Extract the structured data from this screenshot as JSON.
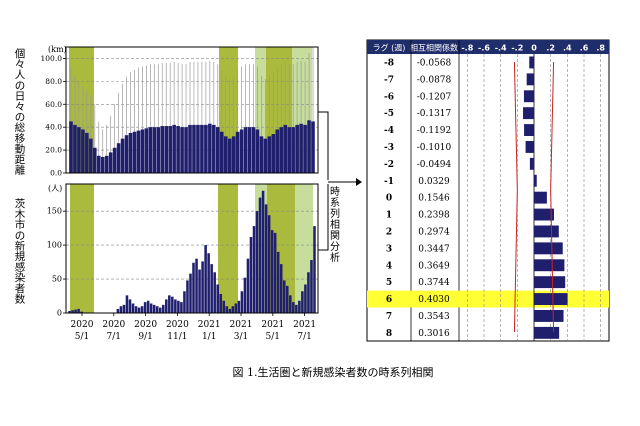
{
  "caption": "図 1.生活圏と新規感染者数の時系列相関",
  "link_label": "時系列相関分析",
  "colors": {
    "navy": "#1f1f6e",
    "olive": "#a9ba3c",
    "light_green": "#c6dd9c",
    "grey": "#9a9a9a",
    "highlight": "#ffff33",
    "header": "#1f2d6b",
    "red": "#cc2222"
  },
  "chart_data": [
    {
      "type": "bar",
      "ylabel": "個々人の日々の総移動距離",
      "unit": "(km)",
      "ylim": [
        0,
        110
      ],
      "yticks": [
        "0.0",
        "20.0",
        "40.0",
        "60.0",
        "80.0",
        "100.0"
      ],
      "ytick_values": [
        0,
        20,
        40,
        60,
        80,
        100
      ],
      "series": [
        {
          "values": [
            45,
            42,
            40,
            38,
            35,
            30,
            22,
            15,
            14,
            15,
            18,
            22,
            26,
            30,
            33,
            35,
            36,
            37,
            38,
            39,
            40,
            40,
            40,
            41,
            41,
            41,
            42,
            41,
            40,
            40,
            42,
            42,
            42,
            42,
            42,
            43,
            42,
            40,
            36,
            32,
            30,
            32,
            36,
            38,
            40,
            40,
            40,
            38,
            32,
            30,
            32,
            34,
            38,
            40,
            42,
            40,
            40,
            42,
            43,
            42,
            46,
            45
          ]
        },
        {
          "values": [
            92,
            85,
            80,
            76,
            72,
            68,
            60,
            45,
            38,
            42,
            50,
            60,
            70,
            78,
            84,
            88,
            90,
            92,
            93,
            94,
            95,
            95,
            95,
            96,
            96,
            96,
            97,
            96,
            95,
            95,
            97,
            97,
            97,
            97,
            97,
            98,
            97,
            95,
            90,
            85,
            82,
            85,
            90,
            93,
            95,
            95,
            95,
            93,
            85,
            82,
            85,
            88,
            92,
            95,
            97,
            95,
            95,
            97,
            98,
            97,
            105,
            110
          ]
        }
      ]
    },
    {
      "type": "bar",
      "ylabel": "茨木市の新規感染者数",
      "unit": "(人)",
      "ylim": [
        0,
        190
      ],
      "yticks": [
        "0",
        "50",
        "100",
        "150"
      ],
      "ytick_values": [
        0,
        50,
        100,
        150
      ],
      "values": [
        3,
        4,
        5,
        6,
        2,
        0,
        0,
        0,
        0,
        0,
        0,
        0,
        0,
        0,
        0,
        0,
        6,
        10,
        12,
        26,
        20,
        14,
        10,
        8,
        10,
        16,
        18,
        14,
        12,
        10,
        8,
        12,
        20,
        26,
        24,
        20,
        18,
        16,
        32,
        48,
        58,
        74,
        80,
        64,
        76,
        100,
        88,
        72,
        60,
        42,
        28,
        18,
        10,
        6,
        10,
        14,
        18,
        32,
        52,
        80,
        112,
        128,
        150,
        170,
        180,
        160,
        144,
        122,
        118,
        90,
        72,
        48,
        40,
        26,
        16,
        12,
        18,
        32,
        42,
        60,
        78,
        128
      ],
      "xticks": [
        {
          "year": "2020",
          "month": "5/1"
        },
        {
          "year": "2020",
          "month": "7/1"
        },
        {
          "year": "2020",
          "month": "9/1"
        },
        {
          "year": "2020",
          "month": "11/1"
        },
        {
          "year": "2021",
          "month": "1/1"
        },
        {
          "year": "2021",
          "month": "3/1"
        },
        {
          "year": "2021",
          "month": "5/1"
        },
        {
          "year": "2021",
          "month": "7/1"
        }
      ]
    },
    {
      "type": "bar",
      "orientation": "horizontal",
      "col_headers": [
        "ラグ (週)",
        "相互相関係数"
      ],
      "xtick_labels": [
        "-.8",
        "-.6",
        "-.4",
        "-.2",
        "0",
        ".2",
        ".4",
        ".6",
        ".8"
      ],
      "xtick_values": [
        -0.8,
        -0.6,
        -0.4,
        -0.2,
        0,
        0.2,
        0.4,
        0.6,
        0.8
      ],
      "xlim": [
        -0.9,
        0.9
      ],
      "highlight_lag": "6",
      "rows": [
        {
          "lag": "-8",
          "coef": "-0.0568",
          "value": -0.0568
        },
        {
          "lag": "-7",
          "coef": "-0.0878",
          "value": -0.0878
        },
        {
          "lag": "-6",
          "coef": "-0.1207",
          "value": -0.1207
        },
        {
          "lag": "-5",
          "coef": "-0.1317",
          "value": -0.1317
        },
        {
          "lag": "-4",
          "coef": "-0.1192",
          "value": -0.1192
        },
        {
          "lag": "-3",
          "coef": "-0.1010",
          "value": -0.101
        },
        {
          "lag": "-2",
          "coef": "-0.0494",
          "value": -0.0494
        },
        {
          "lag": "-1",
          "coef": "0.0329",
          "value": 0.0329
        },
        {
          "lag": "0",
          "coef": "0.1546",
          "value": 0.1546
        },
        {
          "lag": "1",
          "coef": "0.2398",
          "value": 0.2398
        },
        {
          "lag": "2",
          "coef": "0.2974",
          "value": 0.2974
        },
        {
          "lag": "3",
          "coef": "0.3447",
          "value": 0.3447
        },
        {
          "lag": "4",
          "coef": "0.3649",
          "value": 0.3649
        },
        {
          "lag": "5",
          "coef": "0.3744",
          "value": 0.3744
        },
        {
          "lag": "6",
          "coef": "0.4030",
          "value": 0.403
        },
        {
          "lag": "7",
          "coef": "0.3543",
          "value": 0.3543
        },
        {
          "lag": "8",
          "coef": "0.3016",
          "value": 0.3016
        }
      ]
    }
  ]
}
